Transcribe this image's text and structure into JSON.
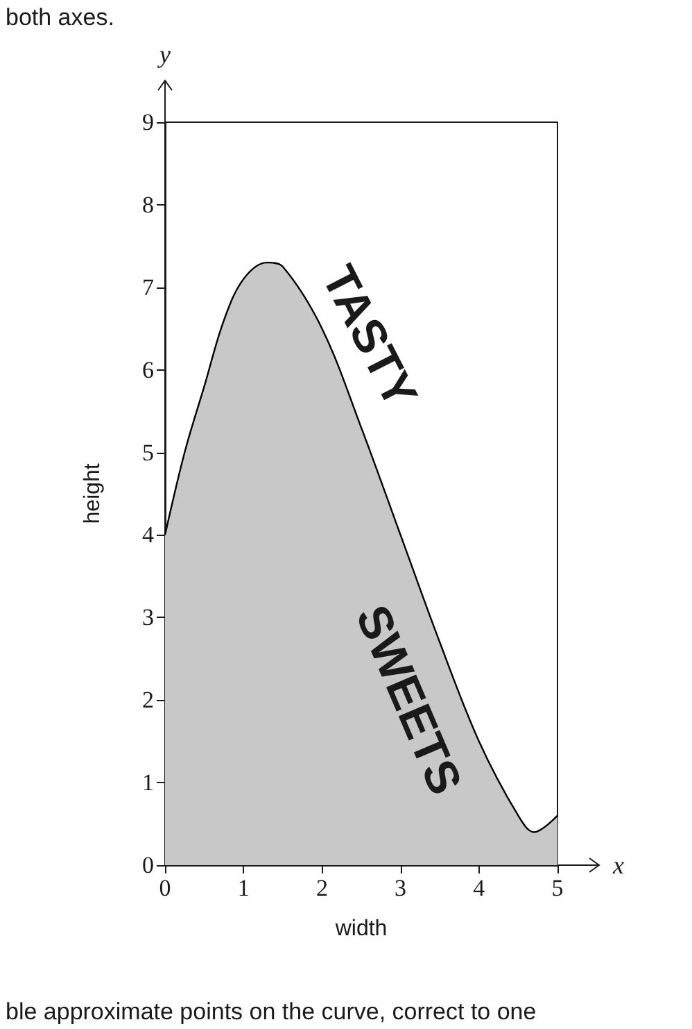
{
  "chart_data": {
    "type": "area",
    "xlabel": "width",
    "ylabel": "height",
    "x": [
      0,
      0.25,
      0.5,
      0.75,
      1,
      1.3,
      1.5,
      2,
      2.5,
      3,
      3.5,
      4,
      4.5,
      4.7,
      5
    ],
    "series": [
      {
        "color": "#c8c8c8",
        "values": [
          4,
          5.0,
          5.8,
          6.6,
          7.1,
          7.3,
          7.25,
          6.5,
          5.3,
          4.0,
          2.7,
          1.5,
          0.6,
          0.4,
          0.6
        ]
      }
    ],
    "xlim": [
      0,
      5
    ],
    "xticks": [
      0,
      1,
      2,
      3,
      4,
      5
    ],
    "ylim": [
      0,
      9
    ],
    "yticks": [
      0,
      1,
      2,
      3,
      4,
      5,
      6,
      7,
      8,
      9
    ],
    "grid": false,
    "marker": "none",
    "line_style": "solid",
    "annotations": [
      "both axes.",
      "ble approximate points on the curve, correct to one",
      "x",
      "y",
      "TASTY",
      "SWEETS"
    ]
  }
}
